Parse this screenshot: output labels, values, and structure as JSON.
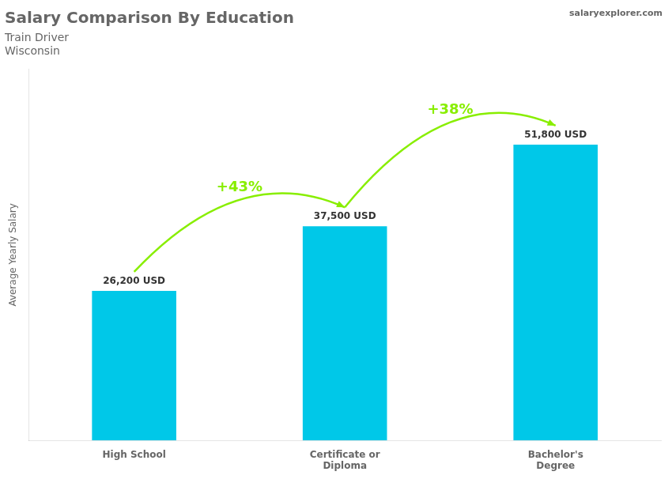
{
  "chart_data": {
    "type": "bar",
    "title": "Salary Comparison By Education",
    "subtitle": [
      "Train Driver",
      "Wisconsin"
    ],
    "y_label": "Average Yearly Salary",
    "categories": [
      "High School",
      "Certificate or\nDiploma",
      "Bachelor's\nDegree"
    ],
    "values": [
      26200,
      37500,
      51800
    ],
    "value_labels": [
      "26,200 USD",
      "37,500 USD",
      "51,800 USD"
    ],
    "data_labels": true,
    "color": "#00C8E8",
    "ylim": [
      0,
      65000
    ],
    "tick_labels": "x",
    "grid": false,
    "annotations": [
      {
        "text": "+43%",
        "from": "High School",
        "to": "Certificate or\nDiploma",
        "color": "#88EE00"
      },
      {
        "text": "+38%",
        "from": "Certificate or\nDiploma",
        "to": "Bachelor's\nDegree",
        "color": "#88EE00"
      },
      {
        "text": "salaryexplorer.com"
      }
    ]
  }
}
